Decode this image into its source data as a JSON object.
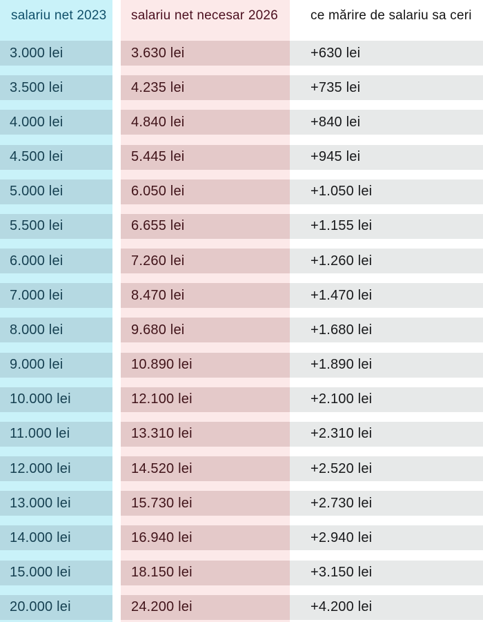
{
  "chart_data": {
    "type": "table",
    "title": "",
    "columns": [
      "salariu net 2023",
      "salariu net necesar 2026",
      "ce mărire de salariu sa ceri"
    ],
    "rows": [
      [
        "3.000 lei",
        "3.630 lei",
        "+630 lei"
      ],
      [
        "3.500 lei",
        "4.235 lei",
        "+735 lei"
      ],
      [
        "4.000 lei",
        "4.840 lei",
        "+840 lei"
      ],
      [
        "4.500 lei",
        "5.445 lei",
        "+945 lei"
      ],
      [
        "5.000 lei",
        "6.050 lei",
        "+1.050 lei"
      ],
      [
        "5.500 lei",
        "6.655 lei",
        "+1.155 lei"
      ],
      [
        "6.000 lei",
        "7.260 lei",
        "+1.260 lei"
      ],
      [
        "7.000 lei",
        "8.470 lei",
        "+1.470 lei"
      ],
      [
        "8.000 lei",
        "9.680 lei",
        "+1.680 lei"
      ],
      [
        "9.000 lei",
        "10.890 lei",
        "+1.890 lei"
      ],
      [
        "10.000 lei",
        "12.100 lei",
        "+2.100 lei"
      ],
      [
        "11.000 lei",
        "13.310 lei",
        "+2.310 lei"
      ],
      [
        "12.000 lei",
        "14.520 lei",
        "+2.520 lei"
      ],
      [
        "13.000 lei",
        "15.730 lei",
        "+2.730 lei"
      ],
      [
        "14.000 lei",
        "16.940 lei",
        "+2.940 lei"
      ],
      [
        "15.000 lei",
        "18.150 lei",
        "+3.150 lei"
      ],
      [
        "20.000 lei",
        "24.200 lei",
        "+4.200 lei"
      ]
    ]
  },
  "colors": {
    "col1_bg_light": "#c9f2f9",
    "col1_band": "#b5d9e2",
    "col1_text": "#153f50",
    "col2_bg_light": "#fce9e9",
    "col2_band": "#e4c9c9",
    "col2_text": "#401319",
    "col3_bg": "#ffffff",
    "col3_band": "#e7e9e9",
    "col3_text": "#17181a",
    "column_gap": "#ffffff"
  }
}
